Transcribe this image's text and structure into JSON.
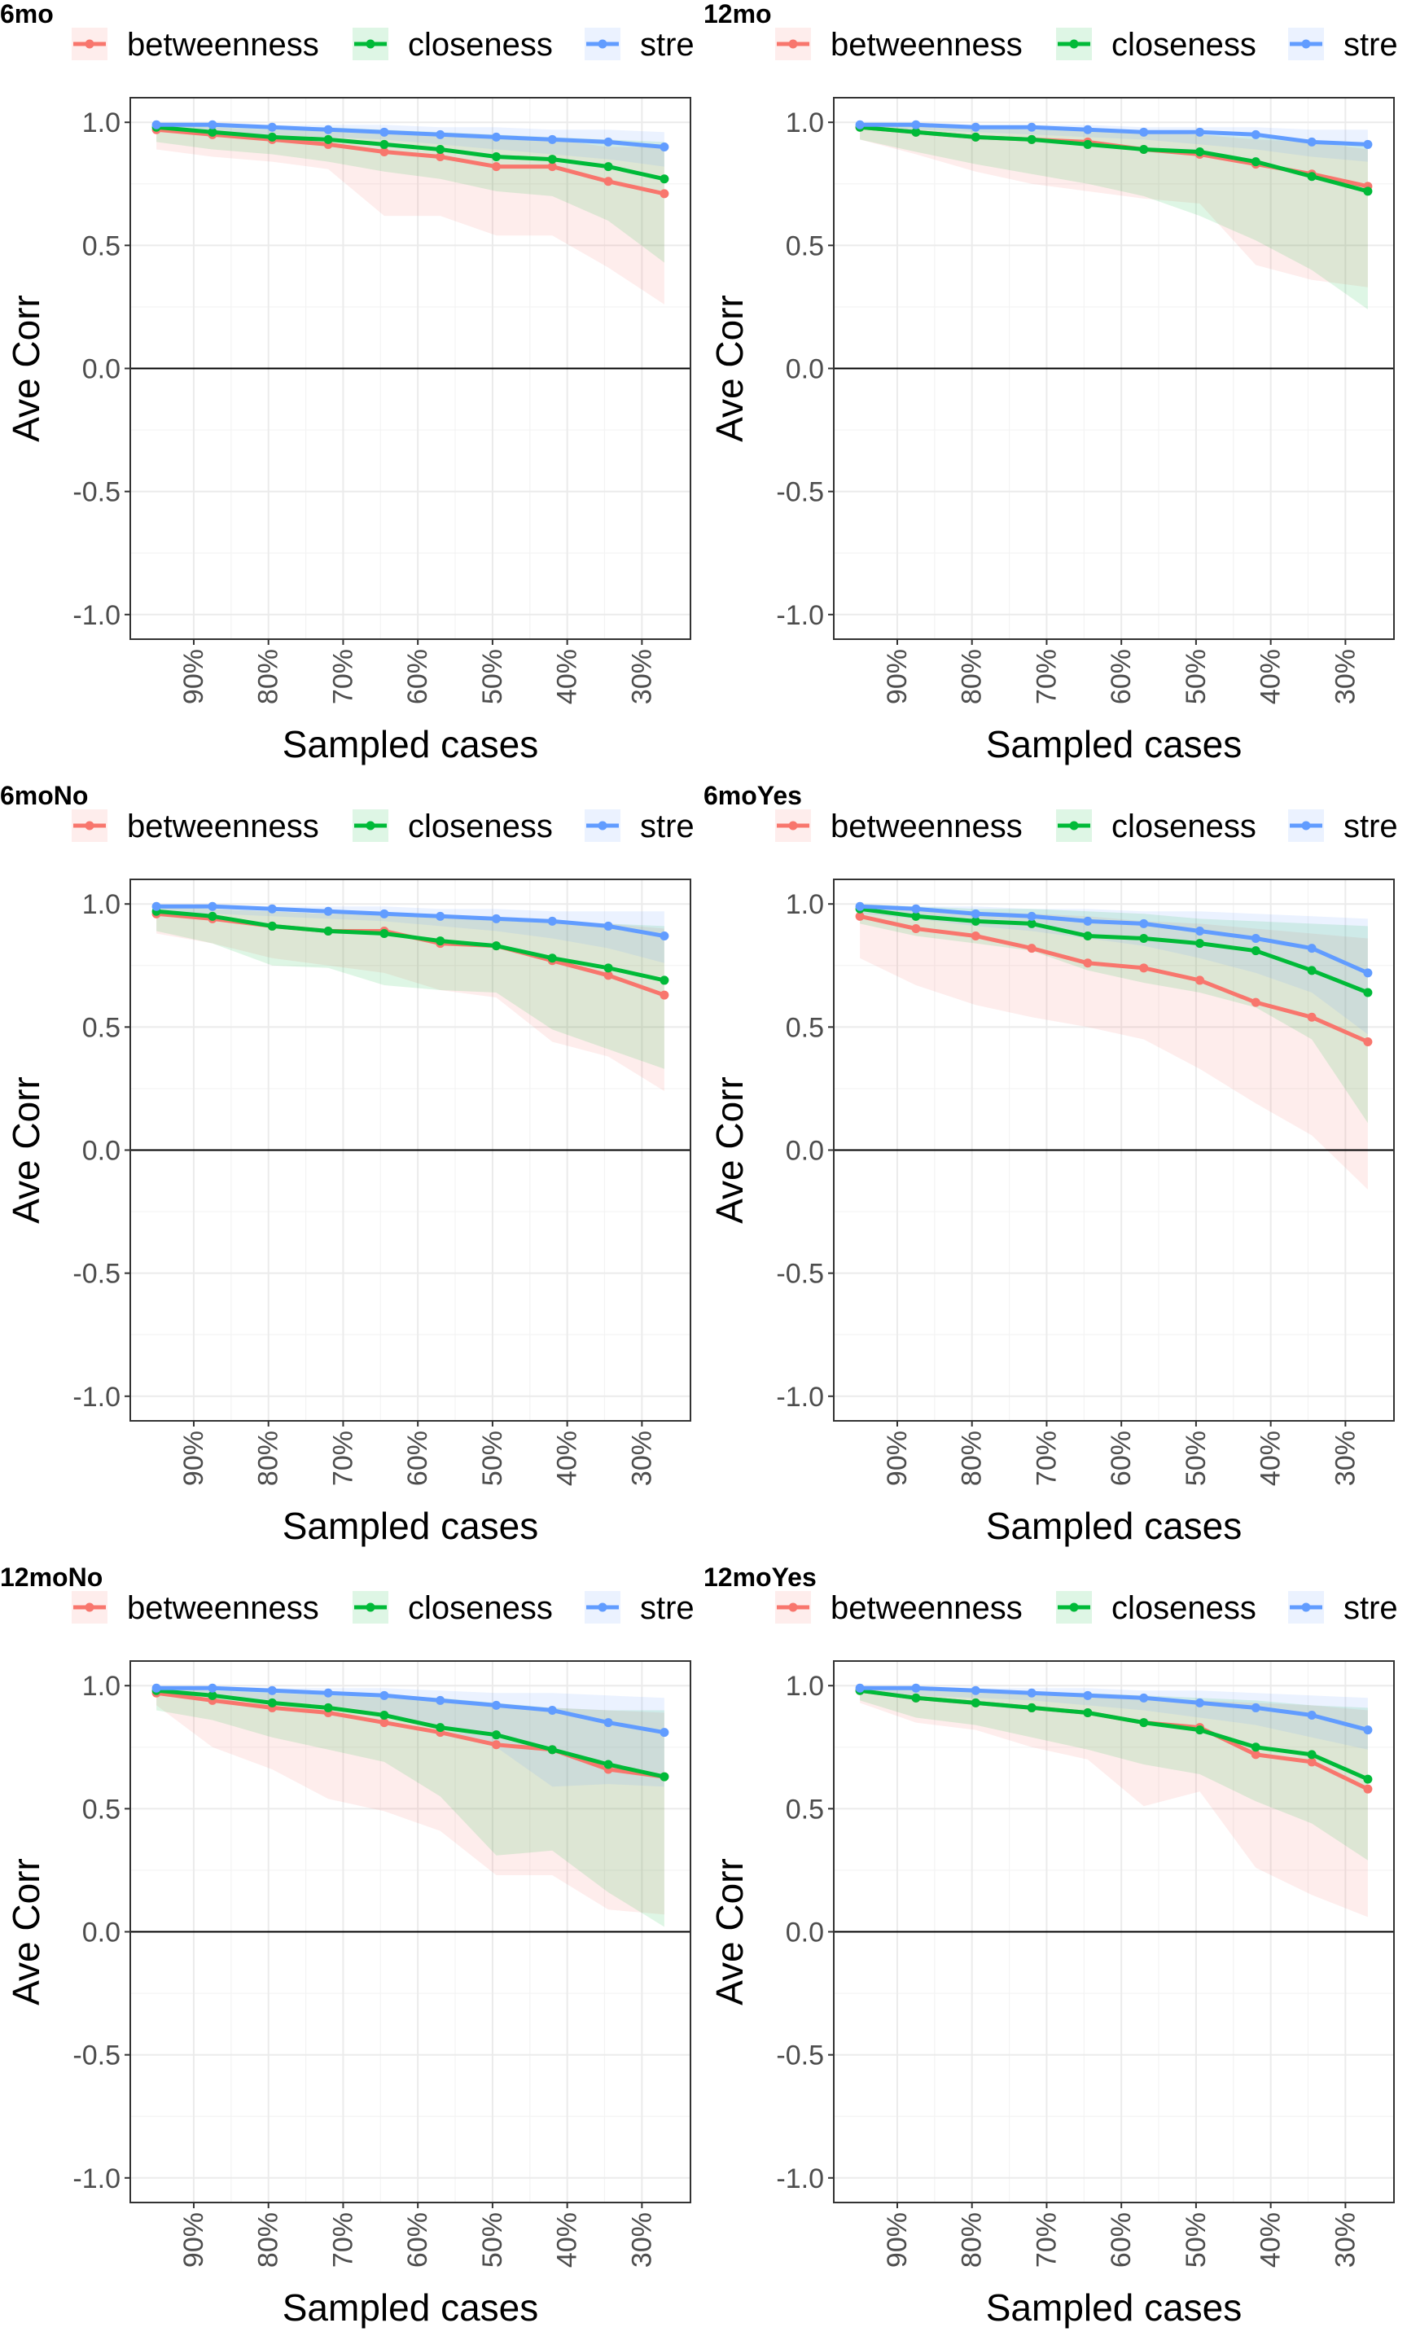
{
  "figure": {
    "xlabel": "Sampled cases",
    "ylabel": "Ave Corr",
    "legend": {
      "placement": "top",
      "entries": [
        "betweenness",
        "closeness",
        "stre"
      ]
    },
    "colors": {
      "betweenness": "#F8766D",
      "closeness": "#00BA38",
      "strength": "#619CFF",
      "grid": "#ebebeb",
      "zero_line": "#000000"
    }
  },
  "chart_data": [
    {
      "title": "6mo",
      "type": "line",
      "x": [
        0.95,
        0.875,
        0.795,
        0.72,
        0.645,
        0.57,
        0.495,
        0.42,
        0.345,
        0.27
      ],
      "x_ticks": [
        0.9,
        0.8,
        0.7,
        0.6,
        0.5,
        0.4,
        0.3
      ],
      "x_tick_labels": [
        "90%",
        "80%",
        "70%",
        "60%",
        "50%",
        "40%",
        "30%"
      ],
      "ylim": [
        -1.1,
        1.1
      ],
      "y_ticks": [
        1.0,
        0.5,
        0.0,
        -0.5,
        -1.0
      ],
      "y_tick_labels": [
        "1.0",
        "0.5",
        "0.0",
        "-0.5",
        "-1.0"
      ],
      "grid": true,
      "series": [
        {
          "name": "betweenness",
          "values": [
            0.97,
            0.95,
            0.93,
            0.91,
            0.88,
            0.86,
            0.82,
            0.82,
            0.76,
            0.71
          ],
          "lower": [
            0.89,
            0.86,
            0.84,
            0.81,
            0.62,
            0.62,
            0.54,
            0.54,
            0.41,
            0.26
          ],
          "upper": [
            0.99,
            0.98,
            0.97,
            0.97,
            0.96,
            0.95,
            0.93,
            0.93,
            0.9,
            0.9
          ]
        },
        {
          "name": "closeness",
          "values": [
            0.98,
            0.96,
            0.94,
            0.93,
            0.91,
            0.89,
            0.86,
            0.85,
            0.82,
            0.77
          ],
          "lower": [
            0.92,
            0.89,
            0.87,
            0.84,
            0.8,
            0.77,
            0.72,
            0.7,
            0.6,
            0.43
          ],
          "upper": [
            0.99,
            0.99,
            0.98,
            0.98,
            0.97,
            0.96,
            0.95,
            0.94,
            0.93,
            0.92
          ]
        },
        {
          "name": "stre",
          "values": [
            0.99,
            0.99,
            0.98,
            0.97,
            0.96,
            0.95,
            0.94,
            0.93,
            0.92,
            0.9
          ],
          "lower": [
            0.97,
            0.96,
            0.95,
            0.94,
            0.93,
            0.91,
            0.89,
            0.87,
            0.85,
            0.82
          ],
          "upper": [
            1.0,
            1.0,
            0.99,
            0.99,
            0.99,
            0.98,
            0.98,
            0.97,
            0.97,
            0.96
          ]
        }
      ]
    },
    {
      "title": "12mo",
      "type": "line",
      "x": [
        0.95,
        0.875,
        0.795,
        0.72,
        0.645,
        0.57,
        0.495,
        0.42,
        0.345,
        0.27
      ],
      "x_ticks": [
        0.9,
        0.8,
        0.7,
        0.6,
        0.5,
        0.4,
        0.3
      ],
      "x_tick_labels": [
        "90%",
        "80%",
        "70%",
        "60%",
        "50%",
        "40%",
        "30%"
      ],
      "ylim": [
        -1.1,
        1.1
      ],
      "y_ticks": [
        1.0,
        0.5,
        0.0,
        -0.5,
        -1.0
      ],
      "y_tick_labels": [
        "1.0",
        "0.5",
        "0.0",
        "-0.5",
        "-1.0"
      ],
      "grid": true,
      "series": [
        {
          "name": "betweenness",
          "values": [
            0.98,
            0.96,
            0.94,
            0.93,
            0.92,
            0.89,
            0.87,
            0.83,
            0.79,
            0.74
          ],
          "lower": [
            0.93,
            0.87,
            0.8,
            0.75,
            0.72,
            0.69,
            0.67,
            0.42,
            0.36,
            0.33
          ],
          "upper": [
            0.99,
            0.99,
            0.98,
            0.97,
            0.97,
            0.96,
            0.95,
            0.93,
            0.92,
            0.89
          ]
        },
        {
          "name": "closeness",
          "values": [
            0.98,
            0.96,
            0.94,
            0.93,
            0.91,
            0.89,
            0.88,
            0.84,
            0.78,
            0.72
          ],
          "lower": [
            0.93,
            0.88,
            0.83,
            0.79,
            0.75,
            0.7,
            0.62,
            0.52,
            0.4,
            0.24
          ],
          "upper": [
            0.99,
            0.99,
            0.98,
            0.97,
            0.97,
            0.96,
            0.95,
            0.94,
            0.92,
            0.91
          ]
        },
        {
          "name": "stre",
          "values": [
            0.99,
            0.99,
            0.98,
            0.98,
            0.97,
            0.96,
            0.96,
            0.95,
            0.92,
            0.91
          ],
          "lower": [
            0.98,
            0.97,
            0.96,
            0.95,
            0.94,
            0.93,
            0.91,
            0.89,
            0.86,
            0.84
          ],
          "upper": [
            1.0,
            1.0,
            0.99,
            0.99,
            0.99,
            0.98,
            0.98,
            0.98,
            0.97,
            0.97
          ]
        }
      ]
    },
    {
      "title": "6moNo",
      "type": "line",
      "x": [
        0.95,
        0.875,
        0.795,
        0.72,
        0.645,
        0.57,
        0.495,
        0.42,
        0.345,
        0.27
      ],
      "x_ticks": [
        0.9,
        0.8,
        0.7,
        0.6,
        0.5,
        0.4,
        0.3
      ],
      "x_tick_labels": [
        "90%",
        "80%",
        "70%",
        "60%",
        "50%",
        "40%",
        "30%"
      ],
      "ylim": [
        -1.1,
        1.1
      ],
      "y_ticks": [
        1.0,
        0.5,
        0.0,
        -0.5,
        -1.0
      ],
      "y_tick_labels": [
        "1.0",
        "0.5",
        "0.0",
        "-0.5",
        "-1.0"
      ],
      "grid": true,
      "series": [
        {
          "name": "betweenness",
          "values": [
            0.96,
            0.94,
            0.91,
            0.89,
            0.89,
            0.84,
            0.83,
            0.77,
            0.71,
            0.63
          ],
          "lower": [
            0.88,
            0.84,
            0.78,
            0.75,
            0.72,
            0.65,
            0.62,
            0.44,
            0.38,
            0.24
          ],
          "upper": [
            0.99,
            0.98,
            0.97,
            0.96,
            0.96,
            0.95,
            0.94,
            0.93,
            0.92,
            0.9
          ]
        },
        {
          "name": "closeness",
          "values": [
            0.97,
            0.95,
            0.91,
            0.89,
            0.88,
            0.85,
            0.83,
            0.78,
            0.74,
            0.69
          ],
          "lower": [
            0.89,
            0.84,
            0.75,
            0.74,
            0.67,
            0.65,
            0.64,
            0.49,
            0.41,
            0.33
          ],
          "upper": [
            0.99,
            0.98,
            0.97,
            0.96,
            0.96,
            0.95,
            0.94,
            0.93,
            0.92,
            0.91
          ]
        },
        {
          "name": "stre",
          "values": [
            0.99,
            0.99,
            0.98,
            0.97,
            0.96,
            0.95,
            0.94,
            0.93,
            0.91,
            0.87
          ],
          "lower": [
            0.97,
            0.96,
            0.95,
            0.94,
            0.93,
            0.91,
            0.89,
            0.86,
            0.82,
            0.76
          ],
          "upper": [
            1.0,
            1.0,
            0.99,
            0.99,
            0.99,
            0.98,
            0.98,
            0.97,
            0.97,
            0.97
          ]
        }
      ]
    },
    {
      "title": "6moYes",
      "type": "line",
      "x": [
        0.95,
        0.875,
        0.795,
        0.72,
        0.645,
        0.57,
        0.495,
        0.42,
        0.345,
        0.27
      ],
      "x_ticks": [
        0.9,
        0.8,
        0.7,
        0.6,
        0.5,
        0.4,
        0.3
      ],
      "x_tick_labels": [
        "90%",
        "80%",
        "70%",
        "60%",
        "50%",
        "40%",
        "30%"
      ],
      "ylim": [
        -1.1,
        1.1
      ],
      "y_ticks": [
        1.0,
        0.5,
        0.0,
        -0.5,
        -1.0
      ],
      "y_tick_labels": [
        "1.0",
        "0.5",
        "0.0",
        "-0.5",
        "-1.0"
      ],
      "grid": true,
      "series": [
        {
          "name": "betweenness",
          "values": [
            0.95,
            0.9,
            0.87,
            0.82,
            0.76,
            0.74,
            0.69,
            0.6,
            0.54,
            0.44
          ],
          "lower": [
            0.78,
            0.67,
            0.59,
            0.54,
            0.5,
            0.45,
            0.33,
            0.19,
            0.06,
            -0.16
          ],
          "upper": [
            0.99,
            0.98,
            0.97,
            0.96,
            0.95,
            0.93,
            0.92,
            0.9,
            0.88,
            0.86
          ]
        },
        {
          "name": "closeness",
          "values": [
            0.98,
            0.95,
            0.93,
            0.92,
            0.87,
            0.86,
            0.84,
            0.81,
            0.73,
            0.64
          ],
          "lower": [
            0.92,
            0.87,
            0.84,
            0.81,
            0.73,
            0.68,
            0.64,
            0.58,
            0.45,
            0.11
          ],
          "upper": [
            1.0,
            0.99,
            0.98,
            0.98,
            0.97,
            0.96,
            0.94,
            0.93,
            0.92,
            0.91
          ]
        },
        {
          "name": "stre",
          "values": [
            0.99,
            0.98,
            0.96,
            0.95,
            0.93,
            0.92,
            0.89,
            0.86,
            0.82,
            0.72
          ],
          "lower": [
            0.96,
            0.94,
            0.91,
            0.89,
            0.86,
            0.83,
            0.78,
            0.72,
            0.64,
            0.47
          ],
          "upper": [
            1.0,
            0.99,
            0.99,
            0.98,
            0.98,
            0.97,
            0.97,
            0.96,
            0.95,
            0.94
          ]
        }
      ]
    },
    {
      "title": "12moNo",
      "type": "line",
      "x": [
        0.95,
        0.875,
        0.795,
        0.72,
        0.645,
        0.57,
        0.495,
        0.42,
        0.345,
        0.27
      ],
      "x_ticks": [
        0.9,
        0.8,
        0.7,
        0.6,
        0.5,
        0.4,
        0.3
      ],
      "x_tick_labels": [
        "90%",
        "80%",
        "70%",
        "60%",
        "50%",
        "40%",
        "30%"
      ],
      "ylim": [
        -1.1,
        1.1
      ],
      "y_ticks": [
        1.0,
        0.5,
        0.0,
        -0.5,
        -1.0
      ],
      "y_tick_labels": [
        "1.0",
        "0.5",
        "0.0",
        "-0.5",
        "-1.0"
      ],
      "grid": true,
      "series": [
        {
          "name": "betweenness",
          "values": [
            0.97,
            0.94,
            0.91,
            0.89,
            0.85,
            0.81,
            0.76,
            0.74,
            0.66,
            0.63
          ],
          "lower": [
            0.92,
            0.75,
            0.66,
            0.54,
            0.49,
            0.41,
            0.23,
            0.23,
            0.09,
            0.07
          ],
          "upper": [
            0.99,
            0.98,
            0.97,
            0.96,
            0.95,
            0.94,
            0.92,
            0.91,
            0.9,
            0.89
          ]
        },
        {
          "name": "closeness",
          "values": [
            0.98,
            0.96,
            0.93,
            0.91,
            0.88,
            0.83,
            0.8,
            0.74,
            0.68,
            0.63
          ],
          "lower": [
            0.9,
            0.86,
            0.79,
            0.74,
            0.69,
            0.55,
            0.31,
            0.33,
            0.16,
            0.02
          ],
          "upper": [
            0.99,
            0.98,
            0.98,
            0.97,
            0.96,
            0.95,
            0.93,
            0.91,
            0.9,
            0.9
          ]
        },
        {
          "name": "stre",
          "values": [
            0.99,
            0.99,
            0.98,
            0.97,
            0.96,
            0.94,
            0.92,
            0.9,
            0.85,
            0.81
          ],
          "lower": [
            0.97,
            0.96,
            0.94,
            0.92,
            0.89,
            0.83,
            0.75,
            0.59,
            0.6,
            0.59
          ],
          "upper": [
            1.0,
            1.0,
            0.99,
            0.99,
            0.99,
            0.98,
            0.97,
            0.97,
            0.96,
            0.95
          ]
        }
      ]
    },
    {
      "title": "12moYes",
      "type": "line",
      "x": [
        0.95,
        0.875,
        0.795,
        0.72,
        0.645,
        0.57,
        0.495,
        0.42,
        0.345,
        0.27
      ],
      "x_ticks": [
        0.9,
        0.8,
        0.7,
        0.6,
        0.5,
        0.4,
        0.3
      ],
      "x_tick_labels": [
        "90%",
        "80%",
        "70%",
        "60%",
        "50%",
        "40%",
        "30%"
      ],
      "ylim": [
        -1.1,
        1.1
      ],
      "y_ticks": [
        1.0,
        0.5,
        0.0,
        -0.5,
        -1.0
      ],
      "y_tick_labels": [
        "1.0",
        "0.5",
        "0.0",
        "-0.5",
        "-1.0"
      ],
      "grid": true,
      "series": [
        {
          "name": "betweenness",
          "values": [
            0.98,
            0.95,
            0.93,
            0.91,
            0.89,
            0.85,
            0.83,
            0.72,
            0.69,
            0.58
          ],
          "lower": [
            0.93,
            0.85,
            0.82,
            0.75,
            0.7,
            0.51,
            0.57,
            0.26,
            0.15,
            0.06
          ],
          "upper": [
            0.99,
            0.99,
            0.98,
            0.97,
            0.96,
            0.95,
            0.94,
            0.93,
            0.92,
            0.9
          ]
        },
        {
          "name": "closeness",
          "values": [
            0.98,
            0.95,
            0.93,
            0.91,
            0.89,
            0.85,
            0.82,
            0.75,
            0.72,
            0.62
          ],
          "lower": [
            0.94,
            0.87,
            0.84,
            0.79,
            0.74,
            0.68,
            0.64,
            0.53,
            0.44,
            0.29
          ],
          "upper": [
            0.99,
            0.99,
            0.98,
            0.97,
            0.97,
            0.96,
            0.95,
            0.94,
            0.92,
            0.91
          ]
        },
        {
          "name": "stre",
          "values": [
            0.99,
            0.99,
            0.98,
            0.97,
            0.96,
            0.95,
            0.93,
            0.91,
            0.88,
            0.82
          ],
          "lower": [
            0.97,
            0.96,
            0.95,
            0.94,
            0.92,
            0.9,
            0.87,
            0.84,
            0.79,
            0.74
          ],
          "upper": [
            1.0,
            1.0,
            0.99,
            0.99,
            0.99,
            0.98,
            0.98,
            0.97,
            0.96,
            0.95
          ]
        }
      ]
    }
  ]
}
